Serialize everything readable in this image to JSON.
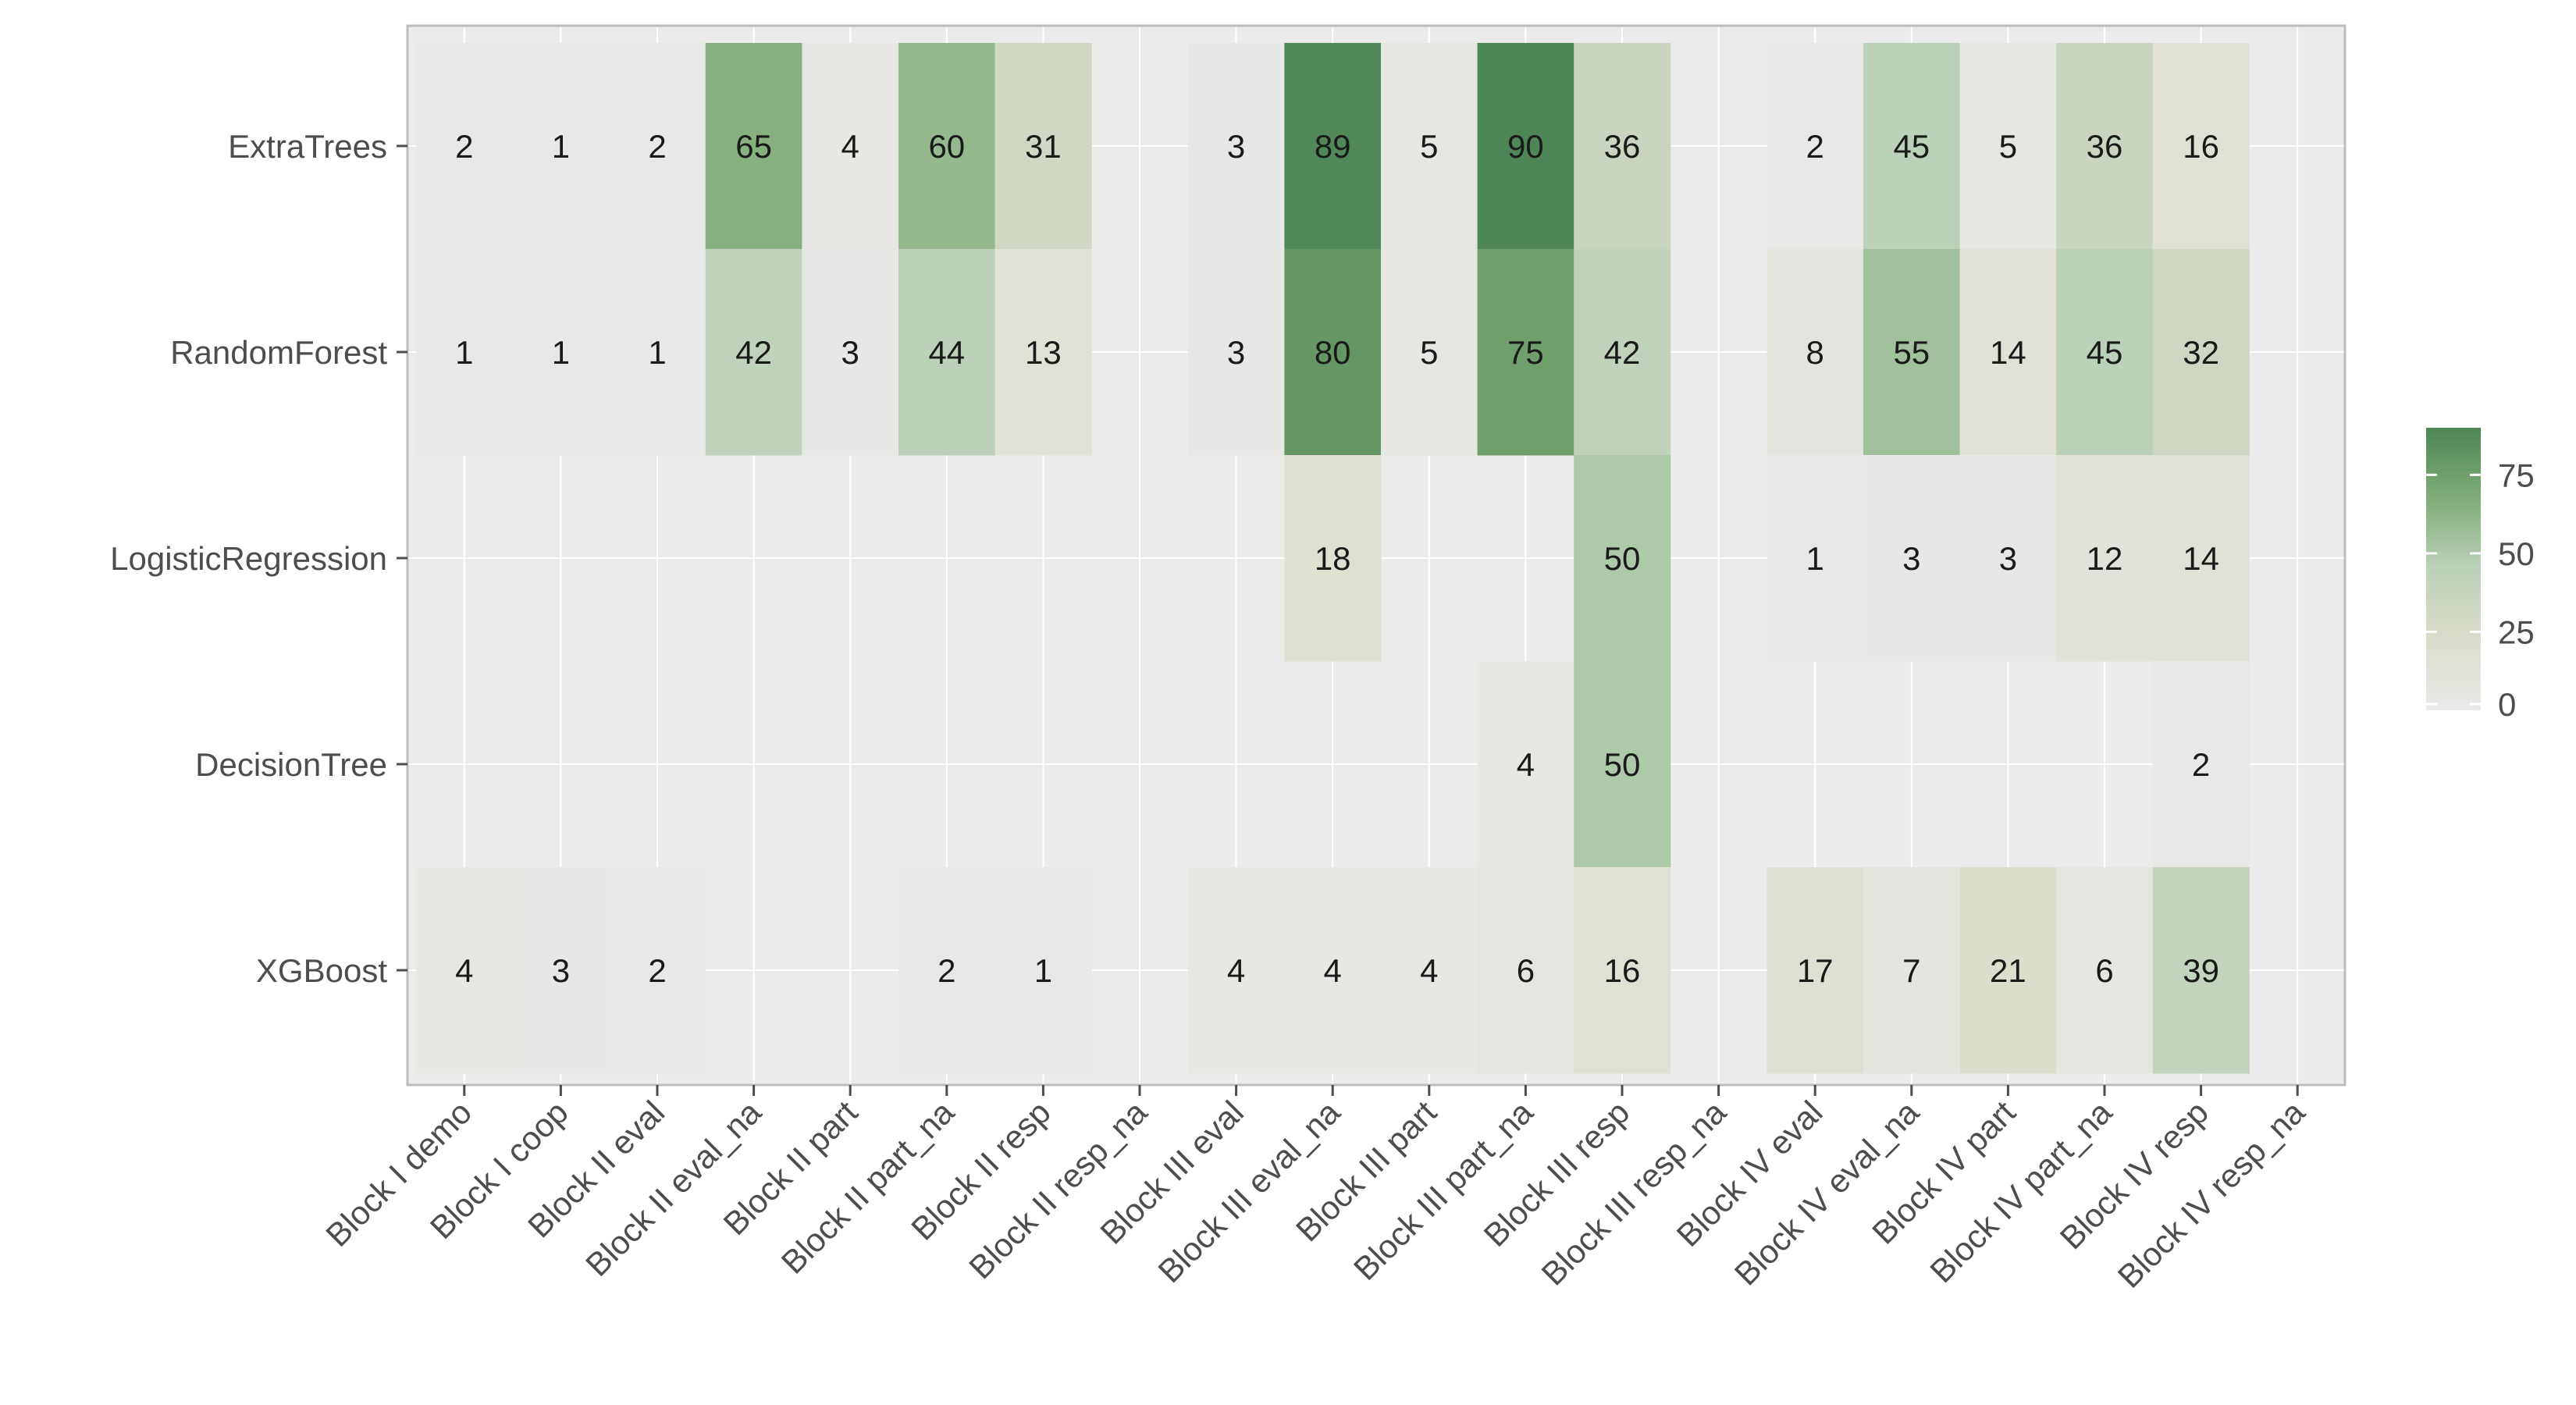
{
  "chart_data": {
    "type": "heatmap",
    "title": "",
    "xlabel": "",
    "ylabel": "",
    "x_categories": [
      "Block I demo",
      "Block I coop",
      "Block II eval",
      "Block II eval_na",
      "Block II part",
      "Block II part_na",
      "Block II resp",
      "Block II resp_na",
      "Block III eval",
      "Block III eval_na",
      "Block III part",
      "Block III part_na",
      "Block III resp",
      "Block III resp_na",
      "Block IV eval",
      "Block IV eval_na",
      "Block IV part",
      "Block IV part_na",
      "Block IV resp",
      "Block IV resp_na"
    ],
    "y_categories": [
      "ExtraTrees",
      "RandomForest",
      "LogisticRegression",
      "DecisionTree",
      "XGBoost"
    ],
    "values": [
      [
        2,
        1,
        2,
        65,
        4,
        60,
        31,
        null,
        3,
        89,
        5,
        90,
        36,
        null,
        2,
        45,
        5,
        36,
        16,
        null
      ],
      [
        1,
        1,
        1,
        42,
        3,
        44,
        13,
        null,
        3,
        80,
        5,
        75,
        42,
        null,
        8,
        55,
        14,
        45,
        32,
        null
      ],
      [
        null,
        null,
        null,
        null,
        null,
        null,
        null,
        null,
        null,
        18,
        null,
        null,
        50,
        null,
        1,
        3,
        3,
        12,
        14,
        null
      ],
      [
        null,
        null,
        null,
        null,
        null,
        null,
        null,
        null,
        null,
        null,
        null,
        4,
        50,
        null,
        null,
        null,
        null,
        null,
        2,
        null
      ],
      [
        4,
        3,
        2,
        null,
        null,
        2,
        1,
        null,
        4,
        4,
        4,
        6,
        16,
        null,
        17,
        7,
        21,
        6,
        39,
        null
      ]
    ],
    "colorbar": {
      "ticks": [
        0,
        25,
        50,
        75
      ],
      "range": [
        0,
        90
      ],
      "colors": [
        "#e9e9e9",
        "#dcdccc",
        "#bcd1b9",
        "#7fad77",
        "#4e8655"
      ]
    },
    "grid": true,
    "legend_position": "right"
  }
}
